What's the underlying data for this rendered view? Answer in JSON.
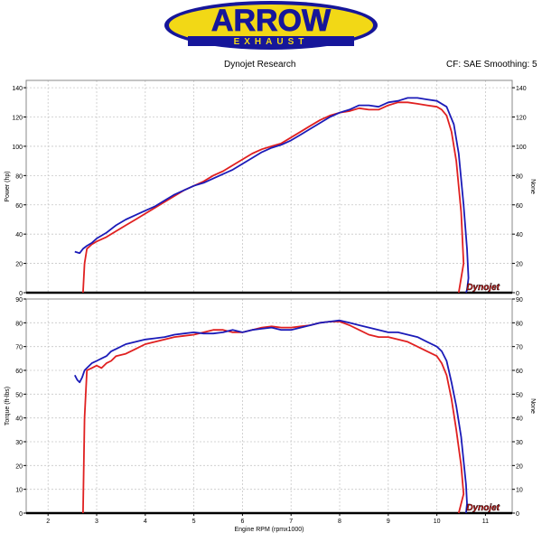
{
  "logo": {
    "word": "ARROW",
    "subword": "EXHAUST",
    "fill": "#f2d816",
    "ink": "#16169a"
  },
  "header": {
    "left": "Dynojet Research",
    "right": "CF: SAE Smoothing: 5"
  },
  "watermark": {
    "text": "Dynojet"
  },
  "colors": {
    "red": "#e02020",
    "blue": "#1b1bb8",
    "axis": "#000000",
    "grid": "#c8c8c8"
  },
  "chart_data": [
    {
      "type": "line",
      "panel": "power",
      "ylabel": "Power (hp)",
      "right_label": "None",
      "xlim": [
        1.55,
        11.55
      ],
      "ylim": [
        0,
        145
      ],
      "yticks": [
        0,
        20,
        40,
        60,
        80,
        100,
        120,
        140
      ],
      "grid": true,
      "series": [
        {
          "color": "red",
          "x": [
            2.72,
            2.75,
            2.8,
            2.9,
            3.0,
            3.2,
            3.4,
            3.6,
            3.8,
            4.0,
            4.2,
            4.4,
            4.6,
            4.8,
            5.0,
            5.2,
            5.4,
            5.6,
            5.8,
            6.0,
            6.2,
            6.4,
            6.6,
            6.8,
            7.0,
            7.2,
            7.4,
            7.6,
            7.8,
            8.0,
            8.2,
            8.4,
            8.6,
            8.8,
            9.0,
            9.2,
            9.4,
            9.6,
            9.8,
            10.0,
            10.1,
            10.2,
            10.3,
            10.4,
            10.5,
            10.55,
            10.45
          ],
          "y": [
            0,
            20,
            30,
            33,
            35,
            38,
            42,
            46,
            50,
            54,
            58,
            62,
            66,
            70,
            73,
            76,
            80,
            83,
            87,
            91,
            95,
            98,
            100,
            102,
            106,
            110,
            114,
            118,
            121,
            123,
            124,
            126,
            125,
            125,
            128,
            130,
            130,
            129,
            128,
            127,
            125,
            121,
            110,
            90,
            55,
            20,
            0
          ]
        },
        {
          "color": "blue",
          "x": [
            2.55,
            2.65,
            2.72,
            2.8,
            2.9,
            3.0,
            3.2,
            3.4,
            3.6,
            3.8,
            4.0,
            4.2,
            4.4,
            4.6,
            4.8,
            5.0,
            5.2,
            5.4,
            5.6,
            5.8,
            6.0,
            6.2,
            6.4,
            6.6,
            6.8,
            7.0,
            7.2,
            7.4,
            7.6,
            7.8,
            8.0,
            8.2,
            8.4,
            8.6,
            8.8,
            9.0,
            9.2,
            9.4,
            9.6,
            9.8,
            10.0,
            10.2,
            10.35,
            10.45,
            10.55,
            10.62,
            10.65,
            10.62,
            10.6
          ],
          "y": [
            28,
            27,
            30,
            32,
            34,
            37,
            41,
            46,
            50,
            53,
            56,
            59,
            63,
            67,
            70,
            73,
            75,
            78,
            81,
            84,
            88,
            92,
            96,
            99,
            101,
            104,
            108,
            112,
            116,
            120,
            123,
            125,
            128,
            128,
            127,
            130,
            131,
            133,
            133,
            132,
            131,
            127,
            115,
            95,
            60,
            30,
            10,
            2,
            0
          ]
        }
      ]
    },
    {
      "type": "line",
      "panel": "torque",
      "ylabel": "Torque (ft-lbs)",
      "right_label": "None",
      "xlabel": "Engine RPM (rpmx1000)",
      "xlim": [
        1.55,
        11.55
      ],
      "ylim": [
        0,
        90
      ],
      "xticks": [
        2,
        3,
        4,
        5,
        6,
        7,
        8,
        9,
        10,
        11
      ],
      "yticks": [
        0,
        10,
        20,
        30,
        40,
        50,
        60,
        70,
        80,
        90
      ],
      "grid": true,
      "series": [
        {
          "color": "red",
          "x": [
            2.72,
            2.75,
            2.8,
            2.9,
            3.0,
            3.1,
            3.2,
            3.3,
            3.4,
            3.6,
            3.8,
            4.0,
            4.2,
            4.4,
            4.6,
            4.8,
            5.0,
            5.2,
            5.4,
            5.6,
            5.8,
            6.0,
            6.2,
            6.4,
            6.6,
            6.8,
            7.0,
            7.2,
            7.4,
            7.6,
            7.8,
            8.0,
            8.2,
            8.4,
            8.6,
            8.8,
            9.0,
            9.2,
            9.4,
            9.6,
            9.8,
            10.0,
            10.1,
            10.2,
            10.3,
            10.4,
            10.5,
            10.55,
            10.45
          ],
          "y": [
            0,
            40,
            60,
            61,
            62,
            61,
            63,
            64,
            66,
            67,
            69,
            71,
            72,
            73,
            74,
            74.5,
            75,
            76,
            77,
            77,
            76,
            76,
            77,
            78,
            78.5,
            78,
            78,
            78.5,
            79,
            80,
            80.5,
            80.5,
            79,
            77,
            75,
            74,
            74,
            73,
            72,
            70,
            68,
            66,
            63,
            58,
            48,
            35,
            20,
            8,
            0
          ]
        },
        {
          "color": "blue",
          "x": [
            2.55,
            2.6,
            2.65,
            2.7,
            2.75,
            2.8,
            2.9,
            3.0,
            3.1,
            3.2,
            3.3,
            3.4,
            3.6,
            3.8,
            4.0,
            4.2,
            4.4,
            4.6,
            4.8,
            5.0,
            5.2,
            5.4,
            5.6,
            5.8,
            6.0,
            6.2,
            6.4,
            6.6,
            6.8,
            7.0,
            7.2,
            7.4,
            7.6,
            7.8,
            8.0,
            8.2,
            8.4,
            8.6,
            8.8,
            9.0,
            9.2,
            9.4,
            9.6,
            9.8,
            10.0,
            10.1,
            10.2,
            10.3,
            10.4,
            10.5,
            10.55,
            10.6,
            10.62,
            10.6
          ],
          "y": [
            58,
            56,
            55,
            57,
            60,
            61,
            63,
            64,
            65,
            66,
            68,
            69,
            71,
            72,
            73,
            73.5,
            74,
            75,
            75.5,
            76,
            75.5,
            75.5,
            76,
            77,
            76,
            77,
            77.5,
            78,
            77,
            77,
            78,
            79,
            80,
            80.5,
            81,
            80,
            79,
            78,
            77,
            76,
            76,
            75,
            74,
            72,
            70,
            68,
            64,
            55,
            45,
            32,
            22,
            12,
            4,
            0
          ]
        }
      ]
    }
  ]
}
